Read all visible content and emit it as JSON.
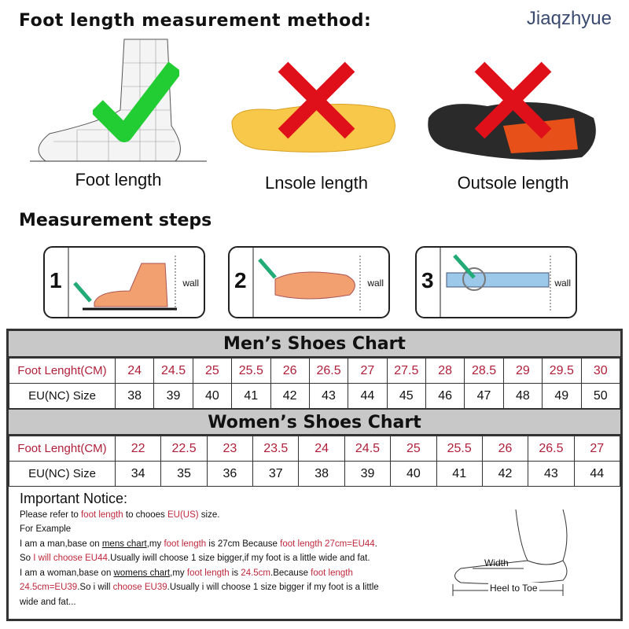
{
  "header": {
    "title": "Foot length measurement method:",
    "brand": "Jiaqzhyue"
  },
  "methods": [
    {
      "label": "Foot length",
      "mark": "check",
      "color": "#22cc33"
    },
    {
      "label": "Lnsole length",
      "mark": "cross",
      "color": "#e0101a"
    },
    {
      "label": "Outsole length",
      "mark": "cross",
      "color": "#e0101a"
    }
  ],
  "steps": {
    "title": "Measurement steps",
    "items": [
      {
        "num": "1",
        "wall": "wall"
      },
      {
        "num": "2",
        "wall": "wall"
      },
      {
        "num": "3",
        "wall": "wall"
      }
    ]
  },
  "men": {
    "title": "Men’s Shoes Chart",
    "row_labels": [
      "Foot Lenght(CM)",
      "EU(NC) Size"
    ],
    "foot_length": [
      "24",
      "24.5",
      "25",
      "25.5",
      "26",
      "26.5",
      "27",
      "27.5",
      "28",
      "28.5",
      "29",
      "29.5",
      "30"
    ],
    "eu": [
      "38",
      "39",
      "40",
      "41",
      "42",
      "43",
      "44",
      "45",
      "46",
      "47",
      "48",
      "49",
      "50"
    ]
  },
  "women": {
    "title": "Women’s Shoes Chart",
    "row_labels": [
      "Foot Lenght(CM)",
      "EU(NC) Size"
    ],
    "foot_length": [
      "22",
      "22.5",
      "23",
      "23.5",
      "24",
      "24.5",
      "25",
      "25.5",
      "26",
      "26.5",
      "27"
    ],
    "eu": [
      "34",
      "35",
      "36",
      "37",
      "38",
      "39",
      "40",
      "41",
      "42",
      "43",
      "44"
    ]
  },
  "notice": {
    "title": "Important Notice:",
    "lines": [
      [
        {
          "t": "Please refer to "
        },
        {
          "t": "foot length",
          "red": true
        },
        {
          "t": " to chooes "
        },
        {
          "t": "EU(US)",
          "red": true
        },
        {
          "t": " size."
        }
      ],
      [
        {
          "t": "For Example"
        }
      ],
      [
        {
          "t": "I am a man,base on "
        },
        {
          "t": "mens chart",
          "u": true
        },
        {
          "t": ",my "
        },
        {
          "t": "foot length",
          "red": true
        },
        {
          "t": " is 27cm Because "
        },
        {
          "t": "foot length 27cm=EU44",
          "red": true
        },
        {
          "t": "."
        }
      ],
      [
        {
          "t": "So "
        },
        {
          "t": "I will choose EU44",
          "red": true
        },
        {
          "t": ".Usually iwill choose 1 size bigger,if my foot is a little wide and fat."
        }
      ],
      [
        {
          "t": "I am a woman,base on "
        },
        {
          "t": "womens chart",
          "u": true
        },
        {
          "t": ",my "
        },
        {
          "t": "foot length",
          "red": true
        },
        {
          "t": " is "
        },
        {
          "t": "24.5cm",
          "red": true
        },
        {
          "t": ".Because "
        },
        {
          "t": "foot length",
          "red": true
        }
      ],
      [
        {
          "t": "24.5cm=EU39",
          "red": true
        },
        {
          "t": ".So i will "
        },
        {
          "t": "choose EU39",
          "red": true
        },
        {
          "t": ".Usually i will choose 1 size bigger if my foot is a little"
        }
      ],
      [
        {
          "t": "wide and fat..."
        }
      ]
    ],
    "diagram": {
      "width_label": "Width",
      "length_label": "Heel to Toe"
    }
  }
}
